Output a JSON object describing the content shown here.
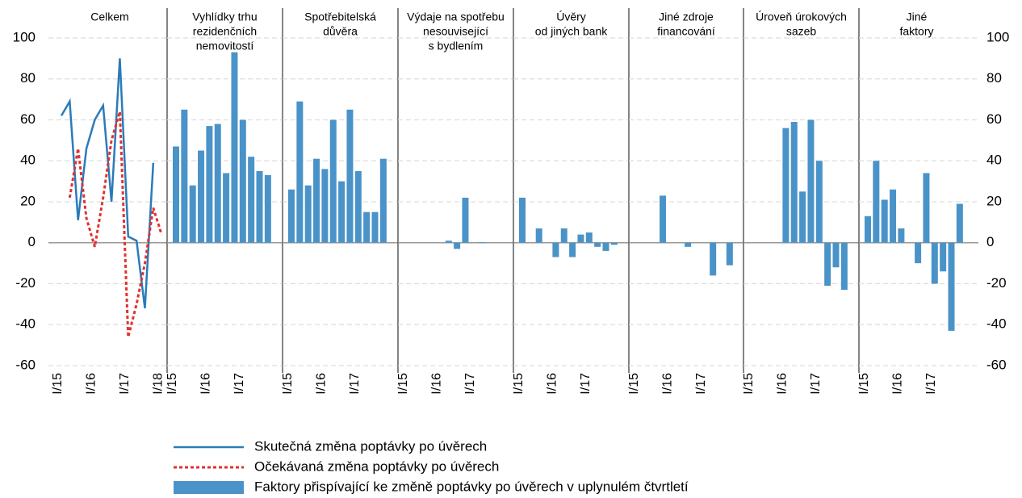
{
  "chart_data": [
    {
      "type": "line",
      "title": [
        "Celkem"
      ],
      "categories": [
        "I/15",
        null,
        null,
        null,
        "I/16",
        null,
        null,
        null,
        "I/17",
        null,
        null,
        null,
        "I/18"
      ],
      "series": [
        {
          "name": "Skutečná změna poptávky po úvěrech",
          "color": "#2b7bb9",
          "dash": false,
          "values": [
            62,
            69,
            11,
            46,
            60,
            67,
            20,
            90,
            3,
            1,
            -32,
            39,
            null
          ]
        },
        {
          "name": "Očekávaná změna poptávky po úvěrech",
          "color": "#e03131",
          "dash": true,
          "values": [
            null,
            22,
            46,
            12,
            -2,
            22,
            50,
            64,
            -46,
            -30,
            -10,
            17,
            4
          ]
        }
      ],
      "ylim": [
        -60,
        100
      ],
      "yticks": [
        -60,
        -40,
        -20,
        0,
        20,
        40,
        60,
        80,
        100
      ],
      "grid": true,
      "yaxis": "left"
    },
    {
      "type": "bar",
      "title": [
        "Vyhlídky trhu",
        "rezidenčních",
        "nemovitostí"
      ],
      "categories": [
        "I/15",
        null,
        null,
        null,
        "I/16",
        null,
        null,
        null,
        "I/17",
        null,
        null,
        null
      ],
      "series": [
        {
          "name": "Faktory přispívající ke změně poptávky po úvěrech v uplynulém čtvrtletí",
          "color": "#4a93c8",
          "values": [
            47,
            65,
            28,
            45,
            57,
            58,
            34,
            93,
            60,
            42,
            35,
            33
          ]
        }
      ],
      "ylim": [
        -60,
        100
      ],
      "yticks": [
        -60,
        -40,
        -20,
        0,
        20,
        40,
        60,
        80,
        100
      ],
      "grid": true
    },
    {
      "type": "bar",
      "title": [
        "Spotřebitelská",
        "důvěra"
      ],
      "categories": [
        "I/15",
        null,
        null,
        null,
        "I/16",
        null,
        null,
        null,
        "I/17",
        null,
        null,
        null
      ],
      "series": [
        {
          "color": "#4a93c8",
          "values": [
            26,
            69,
            28,
            41,
            36,
            60,
            30,
            65,
            35,
            15,
            15,
            41
          ]
        }
      ],
      "ylim": [
        -60,
        100
      ],
      "yticks": [
        -60,
        -40,
        -20,
        0,
        20,
        40,
        60,
        80,
        100
      ],
      "grid": true
    },
    {
      "type": "bar",
      "title": [
        "Výdaje na spotřebu",
        "nesouvisející",
        "s bydlením"
      ],
      "categories": [
        "I/15",
        null,
        null,
        null,
        "I/16",
        null,
        null,
        null,
        "I/17",
        null,
        null,
        null
      ],
      "series": [
        {
          "color": "#4a93c8",
          "values": [
            0,
            0,
            0,
            0,
            0,
            1,
            -3,
            22,
            0,
            0.3,
            0,
            0
          ]
        }
      ],
      "ylim": [
        -60,
        100
      ],
      "yticks": [
        -60,
        -40,
        -20,
        0,
        20,
        40,
        60,
        80,
        100
      ],
      "grid": true
    },
    {
      "type": "bar",
      "title": [
        "Úvěry",
        "od jiných bank"
      ],
      "categories": [
        "I/15",
        null,
        null,
        null,
        "I/16",
        null,
        null,
        null,
        "I/17",
        null,
        null,
        null
      ],
      "series": [
        {
          "color": "#4a93c8",
          "values": [
            22,
            0,
            7,
            0,
            -7,
            7,
            -7,
            4,
            5,
            -2,
            -4,
            -1
          ]
        }
      ],
      "ylim": [
        -60,
        100
      ],
      "yticks": [
        -60,
        -40,
        -20,
        0,
        20,
        40,
        60,
        80,
        100
      ],
      "grid": true
    },
    {
      "type": "bar",
      "title": [
        "Jiné zdroje",
        "financování"
      ],
      "categories": [
        "I/15",
        null,
        null,
        null,
        "I/16",
        null,
        null,
        null,
        "I/17",
        null,
        null,
        null
      ],
      "series": [
        {
          "color": "#4a93c8",
          "values": [
            0,
            0,
            0,
            23,
            0,
            0,
            -2,
            0,
            0,
            -16,
            0,
            -11
          ]
        }
      ],
      "ylim": [
        -60,
        100
      ],
      "yticks": [
        -60,
        -40,
        -20,
        0,
        20,
        40,
        60,
        80,
        100
      ],
      "grid": true
    },
    {
      "type": "bar",
      "title": [
        "Úroveň úrokových",
        "sazeb"
      ],
      "categories": [
        "I/15",
        null,
        null,
        null,
        "I/16",
        null,
        null,
        null,
        "I/17",
        null,
        null,
        null
      ],
      "series": [
        {
          "color": "#4a93c8",
          "values": [
            0,
            0,
            0,
            0,
            56,
            59,
            25,
            60,
            40,
            -21,
            -12,
            -23
          ]
        }
      ],
      "ylim": [
        -60,
        100
      ],
      "yticks": [
        -60,
        -40,
        -20,
        0,
        20,
        40,
        60,
        80,
        100
      ],
      "grid": true
    },
    {
      "type": "bar",
      "title": [
        "Jiné",
        "faktory"
      ],
      "categories": [
        "I/15",
        null,
        null,
        null,
        "I/16",
        null,
        null,
        null,
        "I/17",
        null,
        null,
        null
      ],
      "series": [
        {
          "color": "#4a93c8",
          "values": [
            13,
            40,
            21,
            26,
            7,
            0,
            -10,
            34,
            -20,
            -14,
            -43,
            19
          ]
        }
      ],
      "ylim": [
        -60,
        100
      ],
      "yticks": [
        -60,
        -40,
        -20,
        0,
        20,
        40,
        60,
        80,
        100
      ],
      "grid": true,
      "yaxis": "right"
    }
  ]
}
